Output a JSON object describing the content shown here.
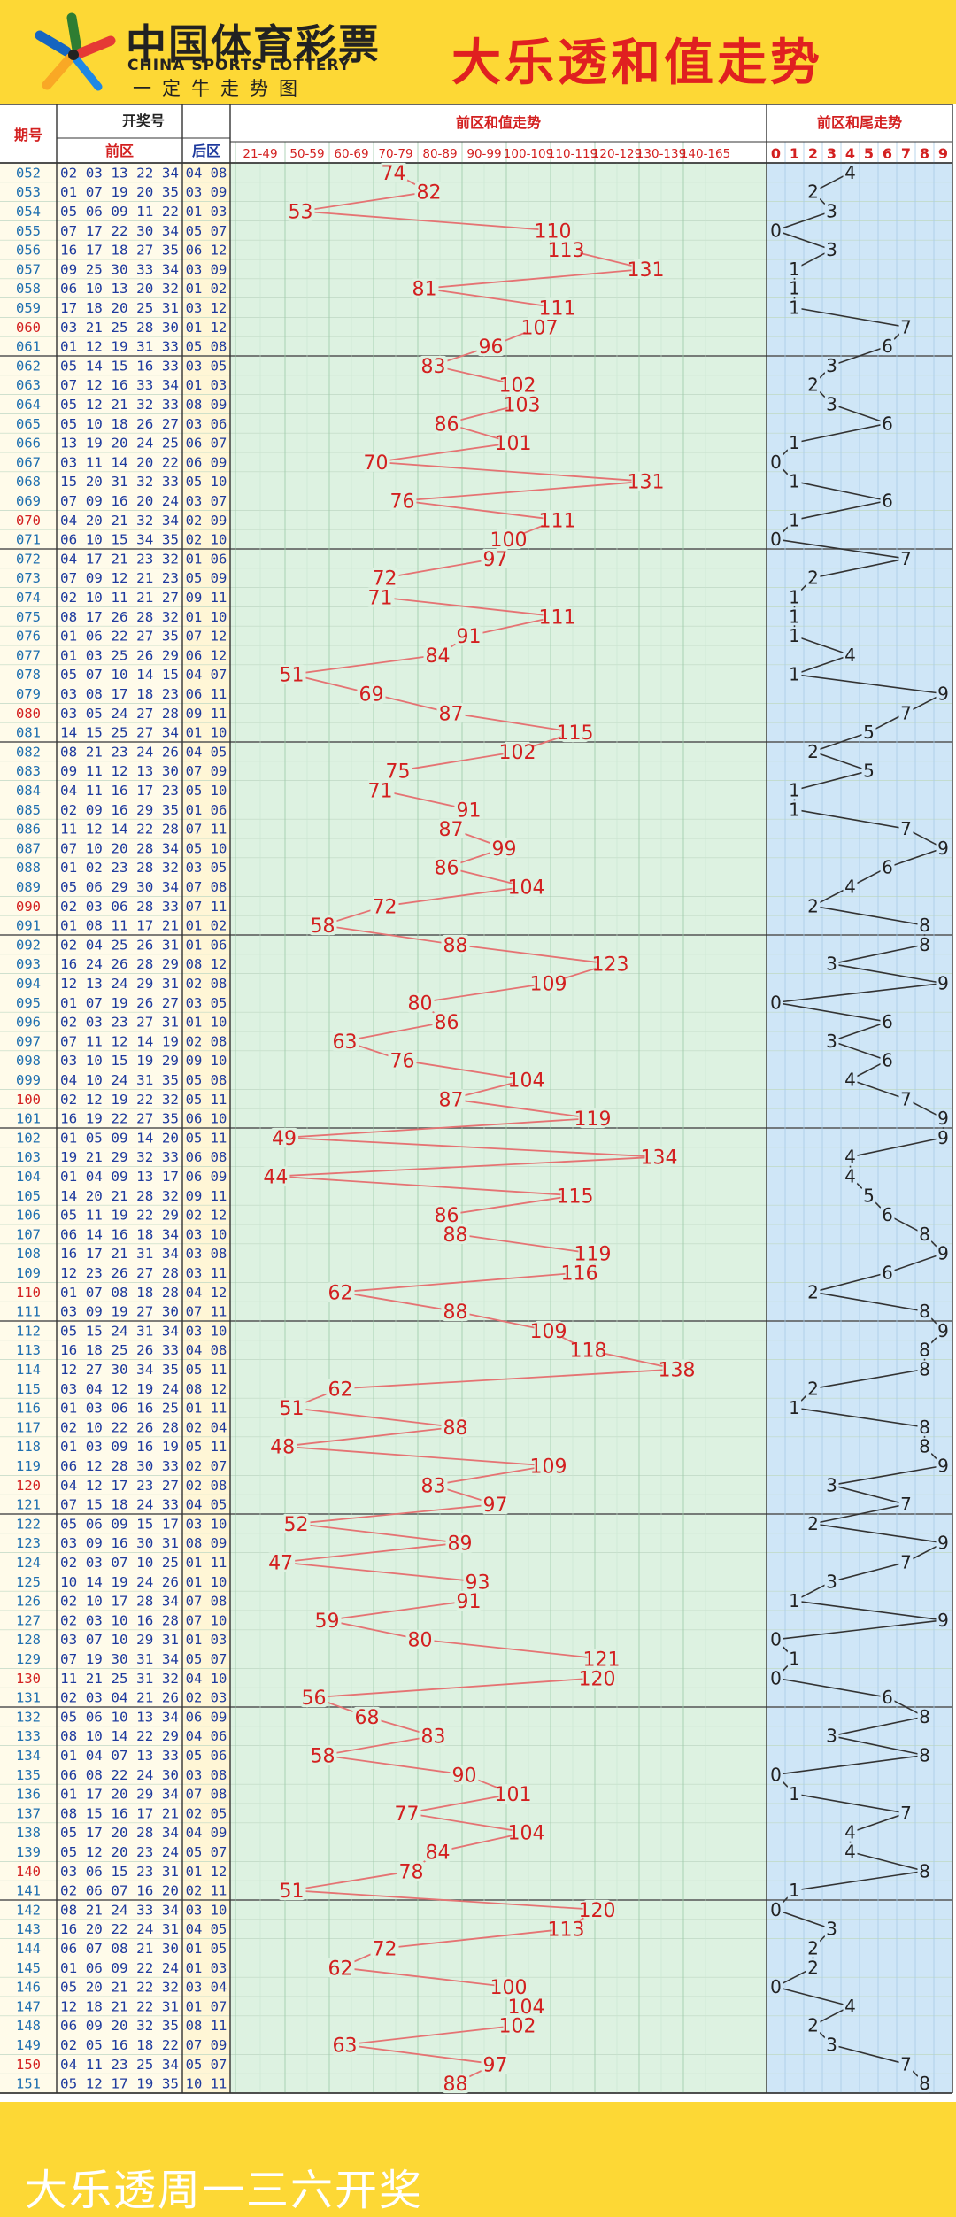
{
  "header": {
    "logo_cn": "中国体育彩票",
    "logo_en": "CHINA SPORTS LOTTERY",
    "logo_sub": "一定牛走势图",
    "title": "大乐透和值走势"
  },
  "footer": {
    "text": "大乐透周一三六开奖"
  },
  "colors": {
    "page_bg": "#FDD835",
    "title_red": "#E02020",
    "sum_red": "#D32020",
    "sum_area": "#DDF2E1",
    "tail_area": "#CFE6F7",
    "left_area": "#FFFBEA",
    "back_area": "#FFF6D6"
  },
  "chart_data": {
    "type": "table",
    "columns": {
      "issue": "期号",
      "draw": "开奖号",
      "front": "前区",
      "back": "后区",
      "sum_trend": "前区和值走势",
      "tail_trend": "前区和尾走势"
    },
    "sum_bands": [
      "21-49",
      "50-59",
      "60-69",
      "70-79",
      "80-89",
      "90-99",
      "100-109",
      "110-119",
      "120-129",
      "130-139",
      "140-165"
    ],
    "tail_digits": [
      "0",
      "1",
      "2",
      "3",
      "4",
      "5",
      "6",
      "7",
      "8",
      "9"
    ],
    "rows": [
      {
        "issue": "052",
        "front": "02 03 13 22 34",
        "back": "04 08",
        "sum": 74
      },
      {
        "issue": "053",
        "front": "01 07 19 20 35",
        "back": "03 09",
        "sum": 82
      },
      {
        "issue": "054",
        "front": "05 06 09 11 22",
        "back": "01 03",
        "sum": 53
      },
      {
        "issue": "055",
        "front": "07 17 22 30 34",
        "back": "05 07",
        "sum": 110
      },
      {
        "issue": "056",
        "front": "16 17 18 27 35",
        "back": "06 12",
        "sum": 113
      },
      {
        "issue": "057",
        "front": "09 25 30 33 34",
        "back": "03 09",
        "sum": 131
      },
      {
        "issue": "058",
        "front": "06 10 13 20 32",
        "back": "01 02",
        "sum": 81
      },
      {
        "issue": "059",
        "front": "17 18 20 25 31",
        "back": "03 12",
        "sum": 111
      },
      {
        "issue": "060",
        "front": "03 21 25 28 30",
        "back": "01 12",
        "sum": 107
      },
      {
        "issue": "061",
        "front": "01 12 19 31 33",
        "back": "05 08",
        "sum": 96
      },
      {
        "issue": "062",
        "front": "05 14 15 16 33",
        "back": "03 05",
        "sum": 83
      },
      {
        "issue": "063",
        "front": "07 12 16 33 34",
        "back": "01 03",
        "sum": 102
      },
      {
        "issue": "064",
        "front": "05 12 21 32 33",
        "back": "08 09",
        "sum": 103
      },
      {
        "issue": "065",
        "front": "05 10 18 26 27",
        "back": "03 06",
        "sum": 86
      },
      {
        "issue": "066",
        "front": "13 19 20 24 25",
        "back": "06 07",
        "sum": 101
      },
      {
        "issue": "067",
        "front": "03 11 14 20 22",
        "back": "06 09",
        "sum": 70
      },
      {
        "issue": "068",
        "front": "15 20 31 32 33",
        "back": "05 10",
        "sum": 131
      },
      {
        "issue": "069",
        "front": "07 09 16 20 24",
        "back": "03 07",
        "sum": 76
      },
      {
        "issue": "070",
        "front": "04 20 21 32 34",
        "back": "02 09",
        "sum": 111
      },
      {
        "issue": "071",
        "front": "06 10 15 34 35",
        "back": "02 10",
        "sum": 100
      },
      {
        "issue": "072",
        "front": "04 17 21 23 32",
        "back": "01 06",
        "sum": 97
      },
      {
        "issue": "073",
        "front": "07 09 12 21 23",
        "back": "05 09",
        "sum": 72
      },
      {
        "issue": "074",
        "front": "02 10 11 21 27",
        "back": "09 11",
        "sum": 71
      },
      {
        "issue": "075",
        "front": "08 17 26 28 32",
        "back": "01 10",
        "sum": 111
      },
      {
        "issue": "076",
        "front": "01 06 22 27 35",
        "back": "07 12",
        "sum": 91
      },
      {
        "issue": "077",
        "front": "01 03 25 26 29",
        "back": "06 12",
        "sum": 84
      },
      {
        "issue": "078",
        "front": "05 07 10 14 15",
        "back": "04 07",
        "sum": 51
      },
      {
        "issue": "079",
        "front": "03 08 17 18 23",
        "back": "06 11",
        "sum": 69
      },
      {
        "issue": "080",
        "front": "03 05 24 27 28",
        "back": "09 11",
        "sum": 87
      },
      {
        "issue": "081",
        "front": "14 15 25 27 34",
        "back": "01 10",
        "sum": 115
      },
      {
        "issue": "082",
        "front": "08 21 23 24 26",
        "back": "04 05",
        "sum": 102
      },
      {
        "issue": "083",
        "front": "09 11 12 13 30",
        "back": "07 09",
        "sum": 75
      },
      {
        "issue": "084",
        "front": "04 11 16 17 23",
        "back": "05 10",
        "sum": 71
      },
      {
        "issue": "085",
        "front": "02 09 16 29 35",
        "back": "01 06",
        "sum": 91
      },
      {
        "issue": "086",
        "front": "11 12 14 22 28",
        "back": "07 11",
        "sum": 87
      },
      {
        "issue": "087",
        "front": "07 10 20 28 34",
        "back": "05 10",
        "sum": 99
      },
      {
        "issue": "088",
        "front": "01 02 23 28 32",
        "back": "03 05",
        "sum": 86
      },
      {
        "issue": "089",
        "front": "05 06 29 30 34",
        "back": "07 08",
        "sum": 104
      },
      {
        "issue": "090",
        "front": "02 03 06 28 33",
        "back": "07 11",
        "sum": 72
      },
      {
        "issue": "091",
        "front": "01 08 11 17 21",
        "back": "01 02",
        "sum": 58
      },
      {
        "issue": "092",
        "front": "02 04 25 26 31",
        "back": "01 06",
        "sum": 88
      },
      {
        "issue": "093",
        "front": "16 24 26 28 29",
        "back": "08 12",
        "sum": 123
      },
      {
        "issue": "094",
        "front": "12 13 24 29 31",
        "back": "02 08",
        "sum": 109
      },
      {
        "issue": "095",
        "front": "01 07 19 26 27",
        "back": "03 05",
        "sum": 80
      },
      {
        "issue": "096",
        "front": "02 03 23 27 31",
        "back": "01 10",
        "sum": 86
      },
      {
        "issue": "097",
        "front": "07 11 12 14 19",
        "back": "02 08",
        "sum": 63
      },
      {
        "issue": "098",
        "front": "03 10 15 19 29",
        "back": "09 10",
        "sum": 76
      },
      {
        "issue": "099",
        "front": "04 10 24 31 35",
        "back": "05 08",
        "sum": 104
      },
      {
        "issue": "100",
        "front": "02 12 19 22 32",
        "back": "05 11",
        "sum": 87
      },
      {
        "issue": "101",
        "front": "16 19 22 27 35",
        "back": "06 10",
        "sum": 119
      },
      {
        "issue": "102",
        "front": "01 05 09 14 20",
        "back": "05 11",
        "sum": 49
      },
      {
        "issue": "103",
        "front": "19 21 29 32 33",
        "back": "06 08",
        "sum": 134
      },
      {
        "issue": "104",
        "front": "01 04 09 13 17",
        "back": "06 09",
        "sum": 44
      },
      {
        "issue": "105",
        "front": "14 20 21 28 32",
        "back": "09 11",
        "sum": 115
      },
      {
        "issue": "106",
        "front": "05 11 19 22 29",
        "back": "02 12",
        "sum": 86
      },
      {
        "issue": "107",
        "front": "06 14 16 18 34",
        "back": "03 10",
        "sum": 88
      },
      {
        "issue": "108",
        "front": "16 17 21 31 34",
        "back": "03 08",
        "sum": 119
      },
      {
        "issue": "109",
        "front": "12 23 26 27 28",
        "back": "03 11",
        "sum": 116
      },
      {
        "issue": "110",
        "front": "01 07 08 18 28",
        "back": "04 12",
        "sum": 62
      },
      {
        "issue": "111",
        "front": "03 09 19 27 30",
        "back": "07 11",
        "sum": 88
      },
      {
        "issue": "112",
        "front": "05 15 24 31 34",
        "back": "03 10",
        "sum": 109
      },
      {
        "issue": "113",
        "front": "16 18 25 26 33",
        "back": "04 08",
        "sum": 118
      },
      {
        "issue": "114",
        "front": "12 27 30 34 35",
        "back": "05 11",
        "sum": 138
      },
      {
        "issue": "115",
        "front": "03 04 12 19 24",
        "back": "08 12",
        "sum": 62
      },
      {
        "issue": "116",
        "front": "01 03 06 16 25",
        "back": "01 11",
        "sum": 51
      },
      {
        "issue": "117",
        "front": "02 10 22 26 28",
        "back": "02 04",
        "sum": 88
      },
      {
        "issue": "118",
        "front": "01 03 09 16 19",
        "back": "05 11",
        "sum": 48
      },
      {
        "issue": "119",
        "front": "06 12 28 30 33",
        "back": "02 07",
        "sum": 109
      },
      {
        "issue": "120",
        "front": "04 12 17 23 27",
        "back": "02 08",
        "sum": 83
      },
      {
        "issue": "121",
        "front": "07 15 18 24 33",
        "back": "04 05",
        "sum": 97
      },
      {
        "issue": "122",
        "front": "05 06 09 15 17",
        "back": "03 10",
        "sum": 52
      },
      {
        "issue": "123",
        "front": "03 09 16 30 31",
        "back": "08 09",
        "sum": 89
      },
      {
        "issue": "124",
        "front": "02 03 07 10 25",
        "back": "01 11",
        "sum": 47
      },
      {
        "issue": "125",
        "front": "10 14 19 24 26",
        "back": "01 10",
        "sum": 93
      },
      {
        "issue": "126",
        "front": "02 10 17 28 34",
        "back": "07 08",
        "sum": 91
      },
      {
        "issue": "127",
        "front": "02 03 10 16 28",
        "back": "07 10",
        "sum": 59
      },
      {
        "issue": "128",
        "front": "03 07 10 29 31",
        "back": "01 03",
        "sum": 80
      },
      {
        "issue": "129",
        "front": "07 19 30 31 34",
        "back": "05 07",
        "sum": 121
      },
      {
        "issue": "130",
        "front": "11 21 25 31 32",
        "back": "04 10",
        "sum": 120
      },
      {
        "issue": "131",
        "front": "02 03 04 21 26",
        "back": "02 03",
        "sum": 56
      },
      {
        "issue": "132",
        "front": "05 06 10 13 34",
        "back": "06 09",
        "sum": 68
      },
      {
        "issue": "133",
        "front": "08 10 14 22 29",
        "back": "04 06",
        "sum": 83
      },
      {
        "issue": "134",
        "front": "01 04 07 13 33",
        "back": "05 06",
        "sum": 58
      },
      {
        "issue": "135",
        "front": "06 08 22 24 30",
        "back": "03 08",
        "sum": 90
      },
      {
        "issue": "136",
        "front": "01 17 20 29 34",
        "back": "07 08",
        "sum": 101
      },
      {
        "issue": "137",
        "front": "08 15 16 17 21",
        "back": "02 05",
        "sum": 77
      },
      {
        "issue": "138",
        "front": "05 17 20 28 34",
        "back": "04 09",
        "sum": 104
      },
      {
        "issue": "139",
        "front": "05 12 20 23 24",
        "back": "05 07",
        "sum": 84
      },
      {
        "issue": "140",
        "front": "03 06 15 23 31",
        "back": "01 12",
        "sum": 78
      },
      {
        "issue": "141",
        "front": "02 06 07 16 20",
        "back": "02 11",
        "sum": 51
      },
      {
        "issue": "142",
        "front": "08 21 24 33 34",
        "back": "03 10",
        "sum": 120
      },
      {
        "issue": "143",
        "front": "16 20 22 24 31",
        "back": "04 05",
        "sum": 113
      },
      {
        "issue": "144",
        "front": "06 07 08 21 30",
        "back": "01 05",
        "sum": 72
      },
      {
        "issue": "145",
        "front": "01 06 09 22 24",
        "back": "01 03",
        "sum": 62
      },
      {
        "issue": "146",
        "front": "05 20 21 22 32",
        "back": "03 04",
        "sum": 100
      },
      {
        "issue": "147",
        "front": "12 18 21 22 31",
        "back": "01 07",
        "sum": 104
      },
      {
        "issue": "148",
        "front": "06 09 20 32 35",
        "back": "08 11",
        "sum": 102
      },
      {
        "issue": "149",
        "front": "02 05 16 18 22",
        "back": "07 09",
        "sum": 63
      },
      {
        "issue": "150",
        "front": "04 11 23 25 34",
        "back": "05 07",
        "sum": 97
      },
      {
        "issue": "151",
        "front": "05 12 17 19 35",
        "back": "10 11",
        "sum": 88
      }
    ]
  }
}
